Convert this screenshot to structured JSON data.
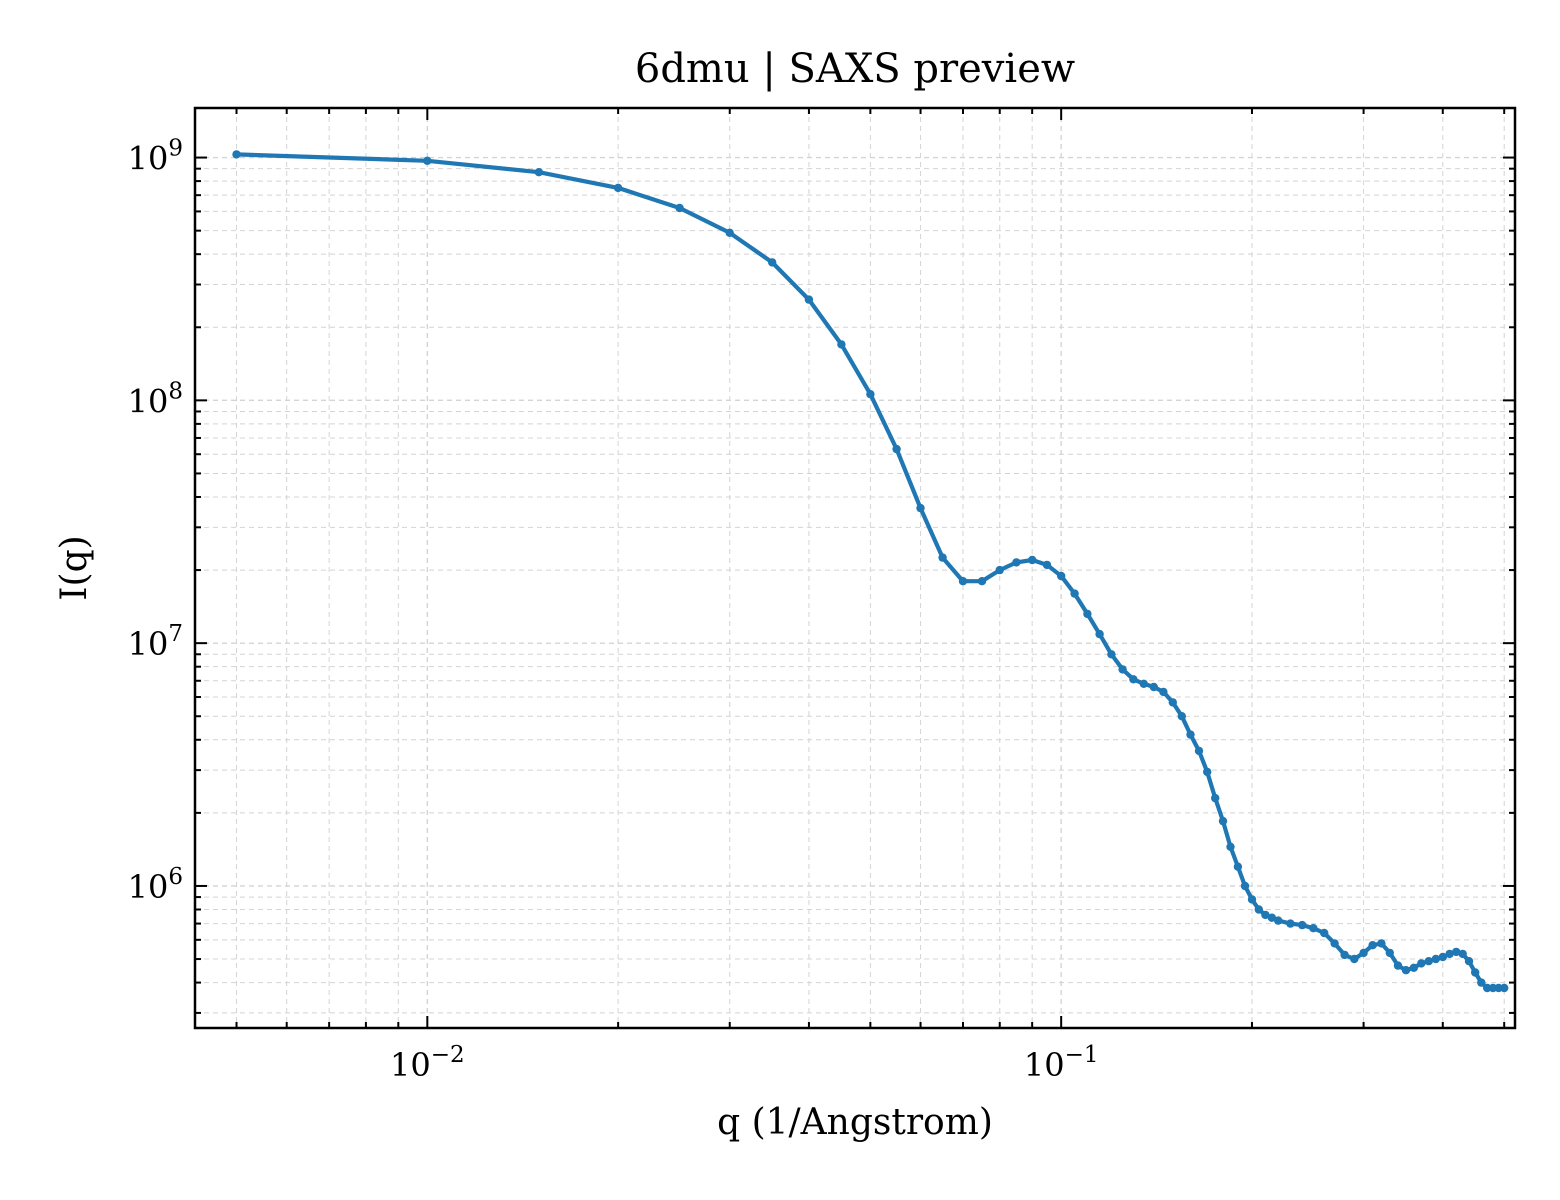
{
  "chart_data": {
    "type": "line",
    "title": "6dmu | SAXS preview",
    "xlabel": "q (1/Angstrom)",
    "ylabel": "I(q)",
    "x_scale": "log",
    "y_scale": "log",
    "xlim": [
      0.0043,
      0.52
    ],
    "ylim": [
      260000,
      1600000000
    ],
    "grid": true,
    "color": "#1f77b4",
    "x_ticks": [
      {
        "value": 0.01,
        "label": "10",
        "exp": "−2"
      },
      {
        "value": 0.1,
        "label": "10",
        "exp": "−1"
      }
    ],
    "y_ticks": [
      {
        "value": 1000000,
        "label": "10",
        "exp": "6"
      },
      {
        "value": 10000000,
        "label": "10",
        "exp": "7"
      },
      {
        "value": 100000000,
        "label": "10",
        "exp": "8"
      },
      {
        "value": 1000000000,
        "label": "10",
        "exp": "9"
      }
    ],
    "series": [
      {
        "x": [
          0.005,
          0.01,
          0.015,
          0.02,
          0.025,
          0.03,
          0.035,
          0.04,
          0.045,
          0.05,
          0.055,
          0.06,
          0.065,
          0.07,
          0.075,
          0.08,
          0.085,
          0.09,
          0.095,
          0.1,
          0.105,
          0.11,
          0.115,
          0.12,
          0.125,
          0.13,
          0.135,
          0.14,
          0.145,
          0.15,
          0.155,
          0.16,
          0.165,
          0.17,
          0.175,
          0.18,
          0.185,
          0.19,
          0.195,
          0.2,
          0.205,
          0.21,
          0.215,
          0.22,
          0.23,
          0.24,
          0.25,
          0.26,
          0.27,
          0.28,
          0.29,
          0.3,
          0.31,
          0.32,
          0.33,
          0.34,
          0.35,
          0.36,
          0.37,
          0.38,
          0.39,
          0.4,
          0.41,
          0.42,
          0.43,
          0.44,
          0.45,
          0.46,
          0.47,
          0.48,
          0.49,
          0.5
        ],
        "y": [
          1030000000,
          970000000,
          870000000,
          750000000,
          620000000,
          490000000,
          370000000,
          260000000,
          170000000,
          106000000,
          63000000,
          36000000,
          22500000,
          18000000,
          18000000,
          20000000,
          21500000,
          22000000,
          21000000,
          18900000,
          16000000,
          13200000,
          10900000,
          9000000,
          7800000,
          7100000,
          6800000,
          6600000,
          6300000,
          5700000,
          5000000,
          4200000,
          3600000,
          2950000,
          2300000,
          1850000,
          1450000,
          1200000,
          1000000,
          880000,
          800000,
          760000,
          740000,
          720000,
          700000,
          690000,
          670000,
          640000,
          580000,
          520000,
          500000,
          530000,
          570000,
          580000,
          530000,
          470000,
          450000,
          460000,
          480000,
          490000,
          500000,
          510000,
          525000,
          535000,
          525000,
          490000,
          440000,
          400000,
          380000,
          380000,
          380000,
          380000
        ]
      }
    ]
  }
}
